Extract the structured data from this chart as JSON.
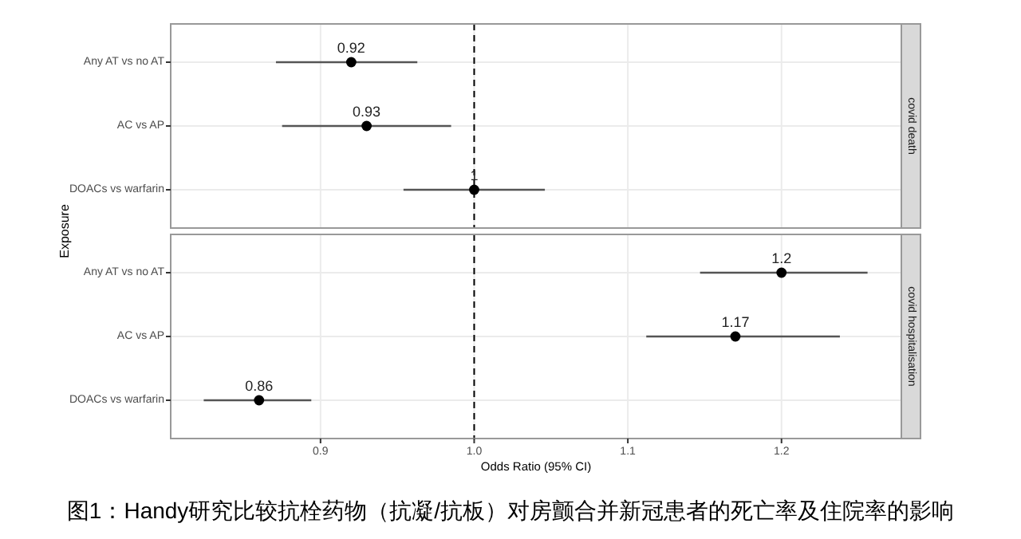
{
  "chart_data": [
    {
      "type": "scatter",
      "orientation": "horizontal",
      "title": "covid death",
      "ylabel": "Exposure",
      "categories": [
        "Any AT vs no AT",
        "AC vs AP",
        "DOACs vs warfarin"
      ],
      "values": [
        0.92,
        0.93,
        1
      ],
      "errors": [
        [
          0.871,
          0.963
        ],
        [
          0.875,
          0.985
        ],
        [
          0.954,
          1.046
        ]
      ],
      "color": "#000000",
      "data_labels": true,
      "marker": "circle",
      "xlim": [
        0.8025,
        1.278
      ],
      "xticks": [
        0.9,
        1,
        1.1,
        1.2
      ],
      "tick_labels": "y",
      "grid": true,
      "ref_lines": [
        {
          "axis": "x",
          "value": 1,
          "line_style": "dashed",
          "color": "#000000"
        }
      ]
    },
    {
      "type": "scatter",
      "orientation": "horizontal",
      "title": "covid hospitalisation",
      "xlabel": "Odds Ratio (95% CI)",
      "categories": [
        "Any AT vs no AT",
        "AC vs AP",
        "DOACs vs warfarin"
      ],
      "values": [
        1.2,
        1.17,
        0.86
      ],
      "errors": [
        [
          1.147,
          1.256
        ],
        [
          1.112,
          1.238
        ],
        [
          0.824,
          0.894
        ]
      ],
      "color": "#000000",
      "data_labels": true,
      "marker": "circle",
      "xlim": [
        0.8025,
        1.278
      ],
      "xticks": [
        0.9,
        {
          "value": 1,
          "label": "1.0"
        },
        1.1,
        1.2
      ],
      "grid": true,
      "ref_lines": [
        {
          "axis": "x",
          "value": 1,
          "line_style": "dashed",
          "color": "#000000"
        }
      ],
      "annotations": [
        "图1：Handy研究比较抗栓药物（抗凝/抗板）对房颤合并新冠患者的死亡率及住院率的影响"
      ]
    }
  ]
}
